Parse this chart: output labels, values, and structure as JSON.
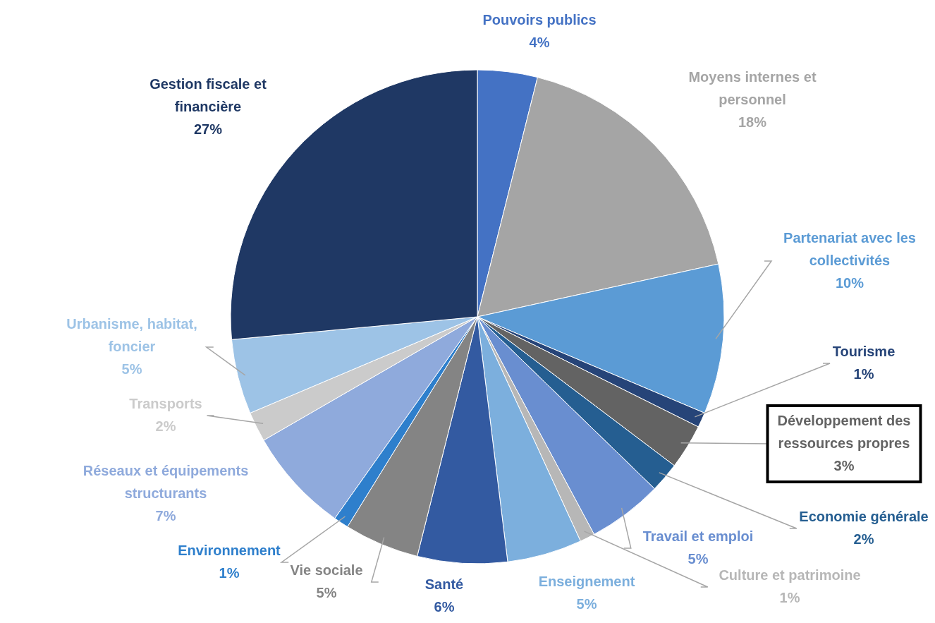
{
  "chart_data": {
    "type": "pie",
    "categories": [
      "Pouvoirs publics",
      "Moyens internes et personnel",
      "Partenariat avec les collectivités",
      "Tourisme",
      "Développement des ressources propres",
      "Economie générale",
      "Travail et emploi",
      "Culture et patrimoine",
      "Enseignement",
      "Santé",
      "Vie sociale",
      "Environnement",
      "Réseaux et équipements structurants",
      "Transports",
      "Urbanisme, habitat, foncier",
      "Gestion fiscale et financière"
    ],
    "values": [
      4,
      18,
      10,
      1,
      3,
      2,
      5,
      1,
      5,
      6,
      5,
      1,
      7,
      2,
      5,
      27
    ],
    "value_labels": [
      "4%",
      "18%",
      "10%",
      "1%",
      "3%",
      "2%",
      "5%",
      "1%",
      "5%",
      "6%",
      "5%",
      "1%",
      "7%",
      "2%",
      "5%",
      "27%"
    ],
    "colors": [
      "#4472c4",
      "#a5a5a5",
      "#5b9bd5",
      "#264478",
      "#636363",
      "#255e91",
      "#698ed0",
      "#b7b7b7",
      "#7cafdd",
      "#335aa1",
      "#848484",
      "#2e7fcc",
      "#8faadc",
      "#cbcbcb",
      "#9dc3e6",
      "#1f3864"
    ]
  }
}
